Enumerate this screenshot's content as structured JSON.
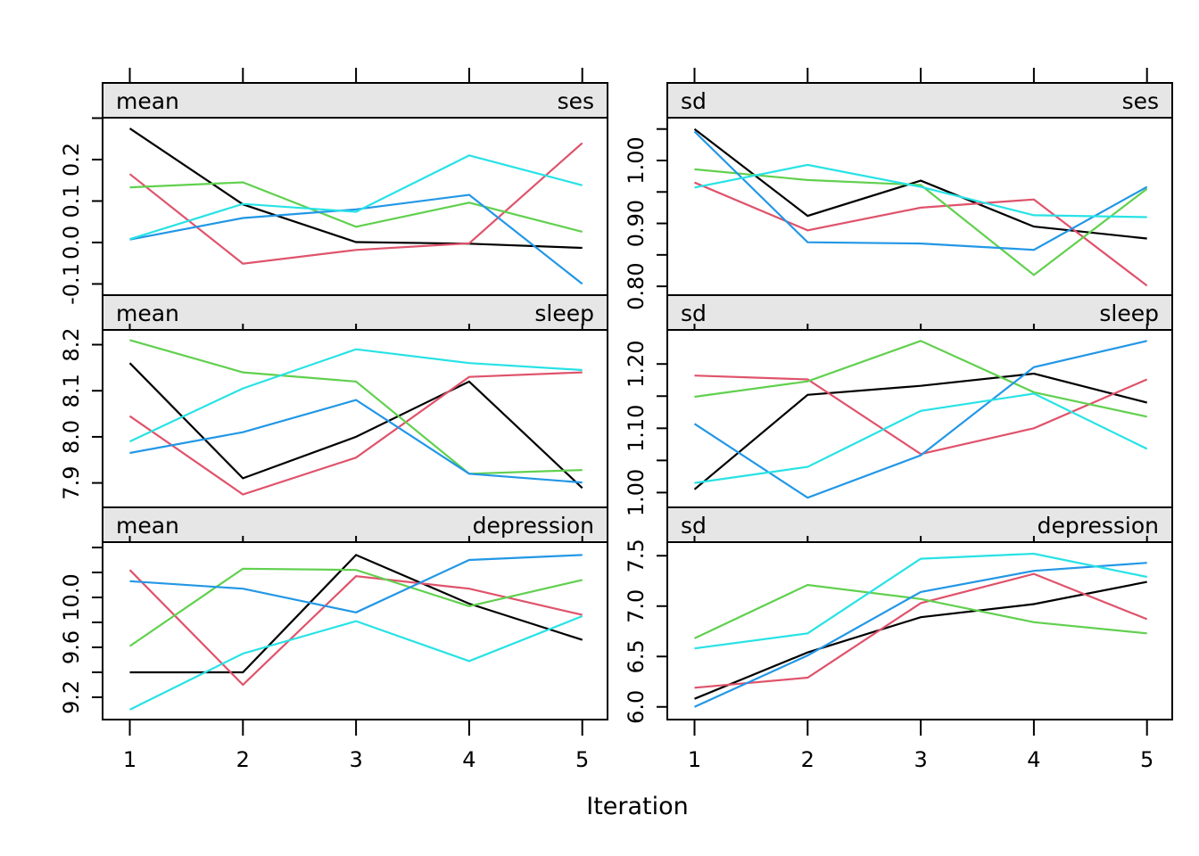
{
  "chart_data": {
    "type": "line",
    "title": "",
    "xlabel": "Iteration",
    "x": [
      1,
      2,
      3,
      4,
      5
    ],
    "x_tick_labels": [
      "1",
      "2",
      "3",
      "4",
      "5"
    ],
    "legend": "none",
    "grid": false,
    "background_color": "#FFFFFF",
    "strip_bg_color": "#E6E6E6",
    "border_color": "#000000",
    "group_colors": {
      "black": "#000000",
      "red": "#DF536B",
      "green": "#61D04F",
      "blue": "#2297E6",
      "cyan": "#28E2E5"
    },
    "panels": [
      {
        "id": "mean-ses",
        "col": 0,
        "row": 0,
        "strip_left": "mean",
        "strip_right": "ses",
        "ylim": [
          -0.127,
          0.301
        ],
        "yticks": [
          {
            "v": 0.3,
            "label": ""
          },
          {
            "v": 0.2,
            "label": "0.2"
          },
          {
            "v": 0.1,
            "label": "0.1"
          },
          {
            "v": 0.0,
            "label": "0.0"
          },
          {
            "v": -0.1,
            "label": "-0.1"
          }
        ],
        "series": [
          {
            "name": "black",
            "values": [
              0.275,
              0.092,
              0.001,
              -0.003,
              -0.013
            ]
          },
          {
            "name": "red",
            "values": [
              0.165,
              -0.051,
              -0.018,
              -0.002,
              0.24
            ]
          },
          {
            "name": "green",
            "values": [
              0.133,
              0.145,
              0.038,
              0.096,
              0.026
            ]
          },
          {
            "name": "blue",
            "values": [
              0.007,
              0.059,
              0.08,
              0.115,
              -0.1
            ]
          },
          {
            "name": "cyan",
            "values": [
              0.008,
              0.093,
              0.074,
              0.21,
              0.138
            ]
          }
        ]
      },
      {
        "id": "sd-ses",
        "col": 1,
        "row": 0,
        "strip_left": "sd",
        "strip_right": "ses",
        "ylim": [
          0.786,
          1.068
        ],
        "yticks": [
          {
            "v": 1.05,
            "label": ""
          },
          {
            "v": 1.0,
            "label": "1.00"
          },
          {
            "v": 0.95,
            "label": ""
          },
          {
            "v": 0.9,
            "label": "0.90"
          },
          {
            "v": 0.85,
            "label": ""
          },
          {
            "v": 0.8,
            "label": "0.80"
          }
        ],
        "series": [
          {
            "name": "black",
            "values": [
              1.05,
              0.912,
              0.968,
              0.895,
              0.876
            ]
          },
          {
            "name": "red",
            "values": [
              0.965,
              0.889,
              0.925,
              0.938,
              0.801
            ]
          },
          {
            "name": "green",
            "values": [
              0.986,
              0.969,
              0.961,
              0.818,
              0.955
            ]
          },
          {
            "name": "blue",
            "values": [
              1.046,
              0.87,
              0.868,
              0.858,
              0.958
            ]
          },
          {
            "name": "cyan",
            "values": [
              0.957,
              0.993,
              0.958,
              0.913,
              0.91
            ]
          }
        ]
      },
      {
        "id": "mean-sleep",
        "col": 0,
        "row": 1,
        "strip_left": "mean",
        "strip_right": "sleep",
        "ylim": [
          7.847,
          8.232
        ],
        "yticks": [
          {
            "v": 8.2,
            "label": "8.2"
          },
          {
            "v": 8.1,
            "label": "8.1"
          },
          {
            "v": 8.0,
            "label": "8.0"
          },
          {
            "v": 7.9,
            "label": "7.9"
          }
        ],
        "series": [
          {
            "name": "black",
            "values": [
              8.16,
              7.91,
              8.0,
              8.12,
              7.889
            ]
          },
          {
            "name": "red",
            "values": [
              8.045,
              7.875,
              7.955,
              8.13,
              8.14
            ]
          },
          {
            "name": "green",
            "values": [
              8.21,
              8.14,
              8.12,
              7.92,
              7.928
            ]
          },
          {
            "name": "blue",
            "values": [
              7.965,
              8.01,
              8.08,
              7.92,
              7.901
            ]
          },
          {
            "name": "cyan",
            "values": [
              7.99,
              8.105,
              8.19,
              8.16,
              8.145
            ]
          }
        ]
      },
      {
        "id": "sd-sleep",
        "col": 1,
        "row": 1,
        "strip_left": "sd",
        "strip_right": "sleep",
        "ylim": [
          0.977,
          1.253
        ],
        "yticks": [
          {
            "v": 1.2,
            "label": "1.20"
          },
          {
            "v": 1.15,
            "label": ""
          },
          {
            "v": 1.1,
            "label": "1.10"
          },
          {
            "v": 1.05,
            "label": ""
          },
          {
            "v": 1.0,
            "label": "1.00"
          }
        ],
        "series": [
          {
            "name": "black",
            "values": [
              1.005,
              1.152,
              1.166,
              1.185,
              1.14
            ]
          },
          {
            "name": "red",
            "values": [
              1.182,
              1.176,
              1.06,
              1.1,
              1.176
            ]
          },
          {
            "name": "green",
            "values": [
              1.149,
              1.173,
              1.236,
              1.156,
              1.118
            ]
          },
          {
            "name": "blue",
            "values": [
              1.107,
              0.992,
              1.058,
              1.195,
              1.236
            ]
          },
          {
            "name": "cyan",
            "values": [
              1.015,
              1.04,
              1.127,
              1.154,
              1.068
            ]
          }
        ]
      },
      {
        "id": "mean-depression",
        "col": 0,
        "row": 2,
        "strip_left": "mean",
        "strip_right": "depression",
        "ylim": [
          9.021,
          10.443
        ],
        "yticks": [
          {
            "v": 10.4,
            "label": ""
          },
          {
            "v": 10.2,
            "label": ""
          },
          {
            "v": 10.0,
            "label": "10.0"
          },
          {
            "v": 9.8,
            "label": ""
          },
          {
            "v": 9.6,
            "label": "9.6"
          },
          {
            "v": 9.4,
            "label": ""
          },
          {
            "v": 9.2,
            "label": "9.2"
          }
        ],
        "series": [
          {
            "name": "black",
            "values": [
              9.4,
              9.4,
              10.34,
              9.95,
              9.66
            ]
          },
          {
            "name": "red",
            "values": [
              10.22,
              9.3,
              10.17,
              10.07,
              9.86
            ]
          },
          {
            "name": "green",
            "values": [
              9.61,
              10.23,
              10.22,
              9.93,
              10.14
            ]
          },
          {
            "name": "blue",
            "values": [
              10.13,
              10.07,
              9.88,
              10.3,
              10.34
            ]
          },
          {
            "name": "cyan",
            "values": [
              9.1,
              9.55,
              9.81,
              9.49,
              9.85
            ]
          }
        ]
      },
      {
        "id": "sd-depression",
        "col": 1,
        "row": 2,
        "strip_left": "sd",
        "strip_right": "depression",
        "ylim": [
          5.874,
          7.635
        ],
        "yticks": [
          {
            "v": 7.5,
            "label": "7.5"
          },
          {
            "v": 7.0,
            "label": "7.0"
          },
          {
            "v": 6.5,
            "label": "6.5"
          },
          {
            "v": 6.0,
            "label": "6.0"
          }
        ],
        "series": [
          {
            "name": "black",
            "values": [
              6.08,
              6.54,
              6.89,
              7.02,
              7.24
            ]
          },
          {
            "name": "red",
            "values": [
              6.19,
              6.29,
              7.03,
              7.32,
              6.87
            ]
          },
          {
            "name": "green",
            "values": [
              6.68,
              7.21,
              7.07,
              6.84,
              6.73
            ]
          },
          {
            "name": "blue",
            "values": [
              6.0,
              6.51,
              7.14,
              7.35,
              7.43
            ]
          },
          {
            "name": "cyan",
            "values": [
              6.58,
              6.73,
              7.47,
              7.52,
              7.29
            ]
          }
        ]
      }
    ]
  }
}
